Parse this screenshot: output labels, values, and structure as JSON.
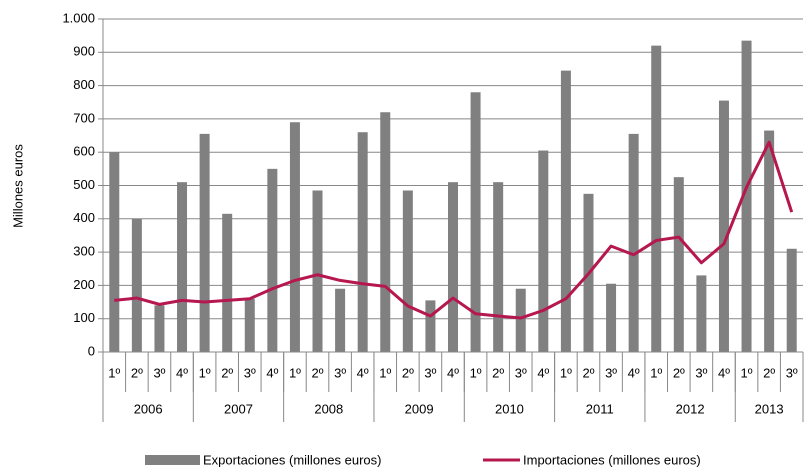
{
  "chart_data": {
    "type": "bar-line",
    "y_label": "Millones euros",
    "categories": [
      "1º",
      "2º",
      "3º",
      "4º",
      "1º",
      "2º",
      "3º",
      "4º",
      "1º",
      "2º",
      "3º",
      "4º",
      "1º",
      "2º",
      "3º",
      "4º",
      "1º",
      "2º",
      "3º",
      "4º",
      "1º",
      "2º",
      "3º",
      "4º",
      "1º",
      "2º",
      "3º",
      "4º",
      "1º",
      "2º",
      "3º"
    ],
    "category_groups": [
      {
        "label": "2006",
        "size": 4
      },
      {
        "label": "2007",
        "size": 4
      },
      {
        "label": "2008",
        "size": 4
      },
      {
        "label": "2009",
        "size": 4
      },
      {
        "label": "2010",
        "size": 4
      },
      {
        "label": "2011",
        "size": 4
      },
      {
        "label": "2012",
        "size": 4
      },
      {
        "label": "2013",
        "size": 3
      }
    ],
    "series": [
      {
        "name": "Exportaciones (millones euros)",
        "type": "bar",
        "color": "#808080",
        "values": [
          600,
          400,
          140,
          510,
          655,
          415,
          160,
          550,
          690,
          485,
          190,
          660,
          720,
          485,
          155,
          510,
          780,
          510,
          190,
          605,
          845,
          475,
          205,
          655,
          920,
          525,
          230,
          755,
          935,
          665,
          310
        ]
      },
      {
        "name": "Importaciones (millones euros)",
        "type": "line",
        "color": "#b5174e",
        "values": [
          155,
          162,
          143,
          155,
          150,
          155,
          160,
          190,
          215,
          232,
          215,
          205,
          197,
          138,
          108,
          162,
          115,
          108,
          102,
          125,
          160,
          235,
          318,
          292,
          335,
          345,
          268,
          325,
          495,
          630,
          420
        ]
      }
    ],
    "ylim": [
      0,
      1000
    ],
    "yticks": [
      0,
      100,
      200,
      300,
      400,
      500,
      600,
      700,
      800,
      900,
      {
        "value": 1000,
        "label": "1.000"
      }
    ],
    "grid": true
  }
}
